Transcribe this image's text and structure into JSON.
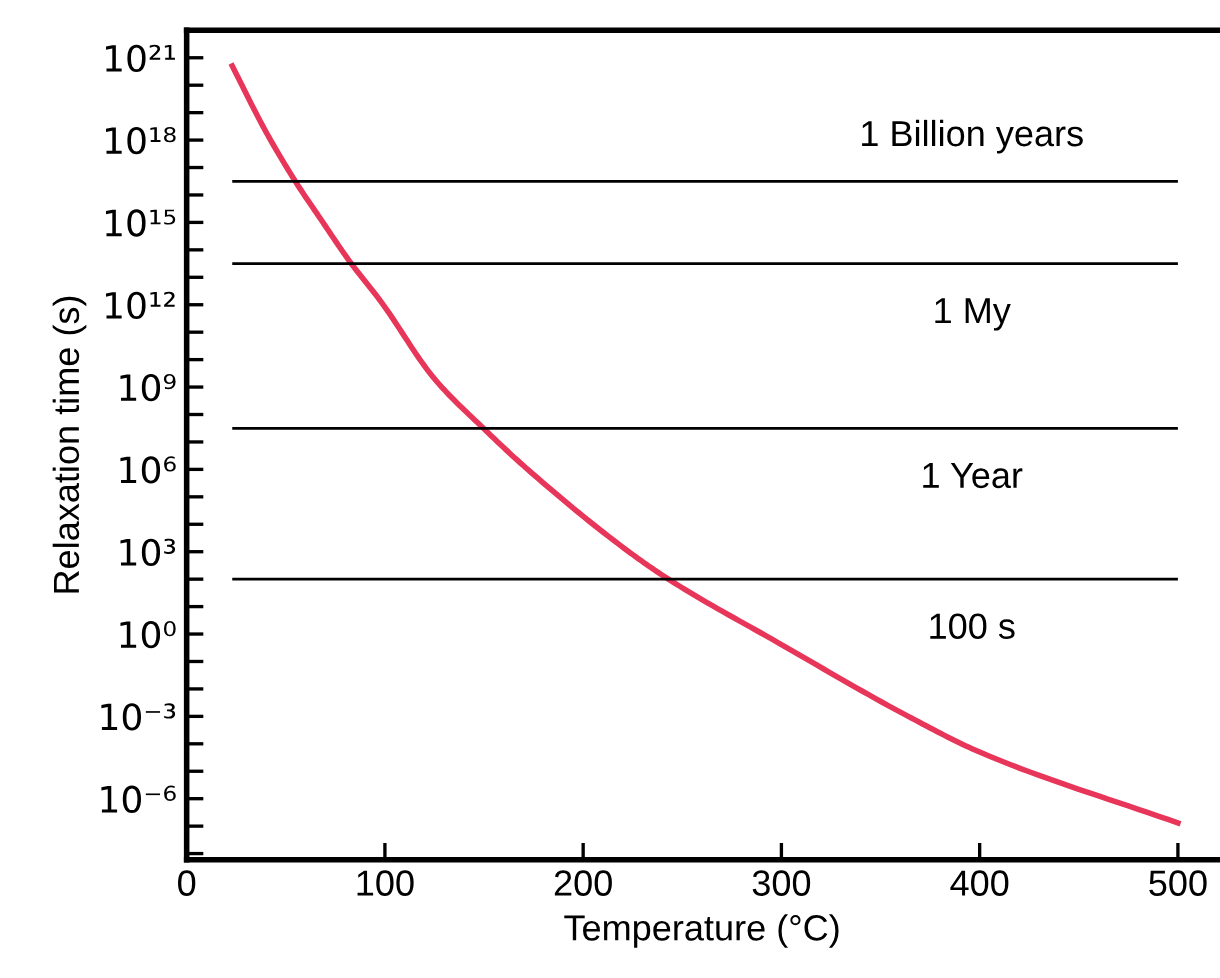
{
  "chart_data": {
    "type": "line",
    "xlabel": "Temperature (°C)",
    "ylabel": "Relaxation time (s)",
    "log": "y",
    "x": [
      23,
      40,
      55,
      68,
      82,
      98,
      125,
      150,
      172,
      223,
      243,
      298,
      364,
      400,
      500
    ],
    "series": [
      {
        "color": "#e8365a",
        "values": [
          5e+20,
          2e+18,
          3e+16,
          1200000000000000.0,
          40000000000000.0,
          1300000000000.0,
          2000000000.0,
          30000000.0,
          1000000.0,
          1000,
          100,
          0.5,
          0.001,
          5e-05,
          1.3e-07
        ]
      }
    ],
    "xlim": [
      0,
      520
    ],
    "xticks": [
      0,
      100,
      200,
      300,
      400,
      500
    ],
    "ylim": [
      6e-09,
      1e+22
    ],
    "yticks": [
      {
        "value": 1e-08,
        "label": null
      },
      {
        "value": 1e-07,
        "label": null
      },
      {
        "value": 1e-06,
        "label": "10⁻⁶"
      },
      {
        "value": 1e-05,
        "label": null
      },
      {
        "value": 0.0001,
        "label": null
      },
      {
        "value": 0.001,
        "label": "10⁻³"
      },
      {
        "value": 0.01,
        "label": null
      },
      {
        "value": 0.1,
        "label": null
      },
      {
        "value": 1,
        "label": "10⁰"
      },
      {
        "value": 10,
        "label": null
      },
      {
        "value": 100,
        "label": null
      },
      {
        "value": 1000,
        "label": "10³"
      },
      {
        "value": 10000.0,
        "label": null
      },
      {
        "value": 100000.0,
        "label": null
      },
      {
        "value": 1000000.0,
        "label": "10⁶"
      },
      {
        "value": 10000000.0,
        "label": null
      },
      {
        "value": 100000000.0,
        "label": null
      },
      {
        "value": 1000000000.0,
        "label": "10⁹"
      },
      {
        "value": 10000000000.0,
        "label": null
      },
      {
        "value": 100000000000.0,
        "label": null
      },
      {
        "value": 1000000000000.0,
        "label": "10¹²"
      },
      {
        "value": 10000000000000.0,
        "label": null
      },
      {
        "value": 100000000000000.0,
        "label": null
      },
      {
        "value": 1000000000000000.0,
        "label": "10¹⁵"
      },
      {
        "value": 1e+16,
        "label": null
      },
      {
        "value": 1e+17,
        "label": null
      },
      {
        "value": 1e+18,
        "label": "10¹⁸"
      },
      {
        "value": 1e+19,
        "label": null
      },
      {
        "value": 1e+20,
        "label": null
      },
      {
        "value": 1e+21,
        "label": "10²¹"
      }
    ],
    "ref_lines": [
      {
        "axis": "y",
        "value": 3.15e+16,
        "color": "#000000",
        "label": "1 Billion years"
      },
      {
        "axis": "y",
        "value": 31500000000000.0,
        "color": "#000000",
        "label": "1 My"
      },
      {
        "axis": "y",
        "value": 31500000.0,
        "color": "#000000",
        "label": "1 Year"
      },
      {
        "axis": "y",
        "value": 100,
        "color": "#000000",
        "label": "100 s"
      }
    ],
    "grid": false,
    "legend": false
  }
}
